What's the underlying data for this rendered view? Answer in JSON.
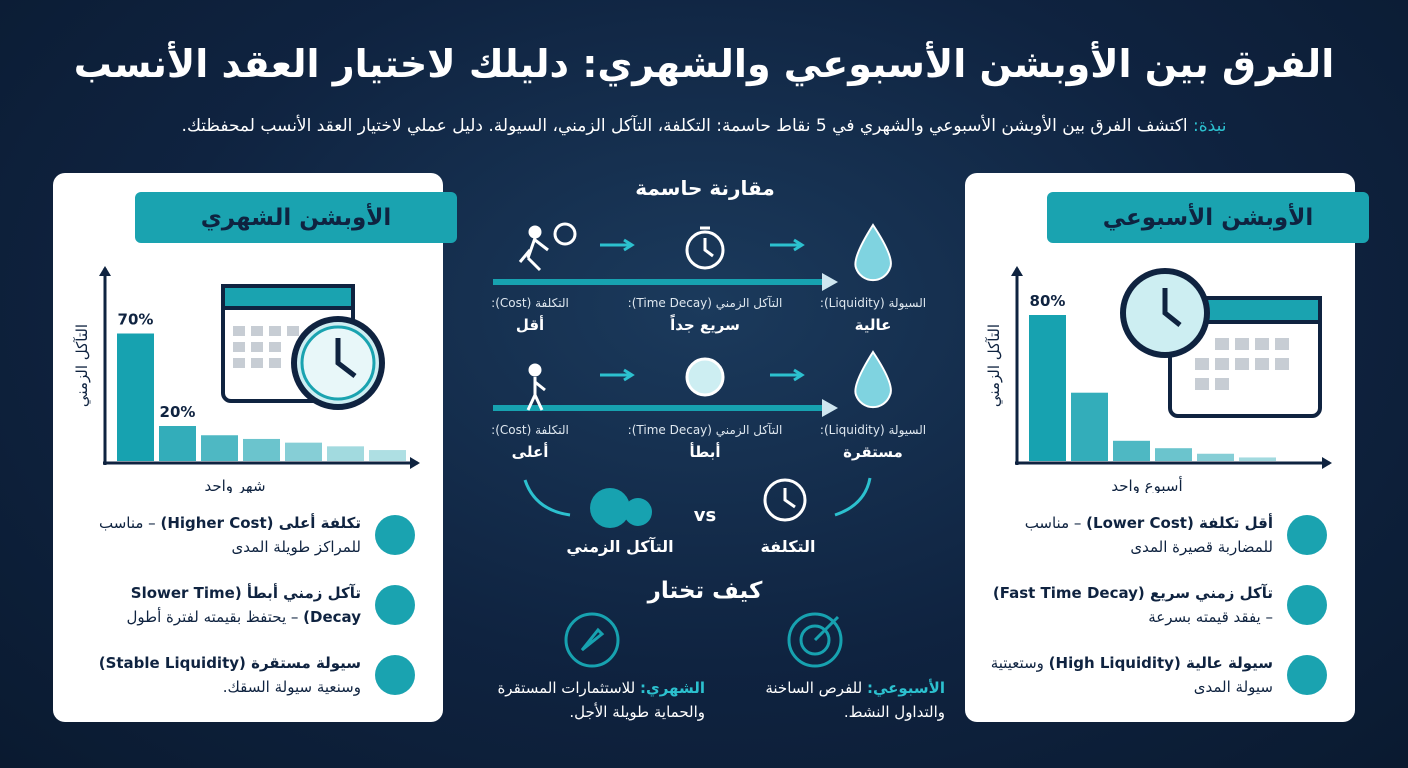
{
  "header": {
    "title": "الفرق بين الأوبشن الأسبوعي والشهري: دليلك لاختيار العقد الأنسب",
    "intro_label": "نبذة:",
    "intro": "اكتشف الفرق بين الأوبشن الأسبوعي والشهري في 5 نقاط حاسمة: التكلفة، التآكل الزمني، السيولة. دليل عملي لاختيار العقد الأنسب لمحفظتك."
  },
  "monthly": {
    "title": "الأوبشن الشهري",
    "chart": {
      "type": "bar",
      "y_label": "التآكل الزمني",
      "x_label": "شهر واحد",
      "values": [
        70,
        20,
        15,
        13,
        11,
        9,
        7
      ],
      "value_labels": [
        "70%",
        "20%",
        null,
        null,
        null,
        null,
        null
      ],
      "ylim": [
        0,
        100
      ],
      "color": "#17a2b0"
    },
    "points": [
      {
        "title": "تكلفة أعلى (Higher Cost)",
        "text": "– مناسب للمراكز طويلة المدى"
      },
      {
        "title": "تآكل زمني أبطأ (Slower Time Decay)",
        "text": "– يحتفظ بقيمته لفترة أطول"
      },
      {
        "title": "سيولة مستقرة (Stable Liquidity)",
        "text": "وسنعية سيولة السقك."
      }
    ]
  },
  "weekly": {
    "title": "الأوبشن الأسبوعي",
    "chart": {
      "type": "bar",
      "y_label": "التآكل الزمني",
      "x_label": "أسبوع واحد",
      "values": [
        80,
        38,
        12,
        8,
        5,
        3,
        1
      ],
      "value_labels": [
        "80%",
        null,
        null,
        null,
        null,
        null,
        null
      ],
      "ylim": [
        0,
        100
      ],
      "color": "#17a2b0"
    },
    "points": [
      {
        "title": "أقل تكلفة (Lower Cost)",
        "text": "– مناسب للمضاربة قصيرة المدى"
      },
      {
        "title": "تآكل زمني سريع (Fast Time Decay)",
        "text": "– يفقد قيمته بسرعة"
      },
      {
        "title": "سيولة عالية (High Liquidity)",
        "text": "وستعيتية سيولة المدى"
      }
    ]
  },
  "comparison": {
    "title": "مقارنة حاسمة",
    "rows": [
      {
        "cells": [
          {
            "label": "السيولة (Liquidity):",
            "value": "عالية"
          },
          {
            "label": "التآكل الزمني (Time Decay):",
            "value": "سريع جداً"
          },
          {
            "label": "التكلفة (Cost):",
            "value": "أقل"
          }
        ]
      },
      {
        "cells": [
          {
            "label": "السيولة (Liquidity):",
            "value": "مستقرة"
          },
          {
            "label": "التآكل الزمني (Time Decay):",
            "value": "أبطأ"
          },
          {
            "label": "التكلفة (Cost):",
            "value": "أعلى"
          }
        ]
      }
    ],
    "left_label": "التآكل الزمني",
    "vs": "vs",
    "right_label": "التكلفة"
  },
  "how_to_choose": {
    "title": "كيف تختار",
    "options": [
      {
        "label": "الأسبوعي:",
        "text": "للفرص الساخنة والتداول النشط."
      },
      {
        "label": "الشهري:",
        "text": "للاستثمارات المستقرة والحماية طويلة الأجل."
      }
    ]
  }
}
